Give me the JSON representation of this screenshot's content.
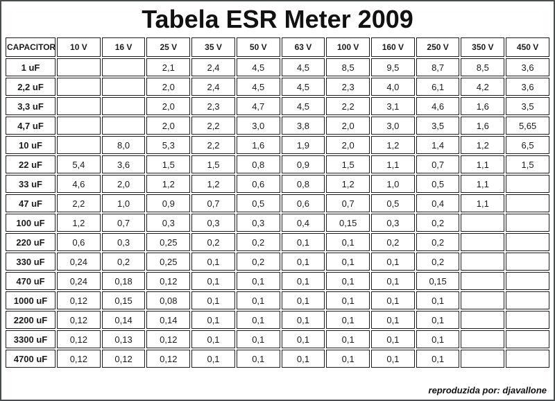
{
  "title": "Tabela ESR Meter 2009",
  "footer": {
    "credit": "reproduzida por: djavallone"
  },
  "colors": {
    "teal": "#57C5C9",
    "yellow": "#F8F4A5",
    "empty_gray": "#C2C2C2",
    "header_gray": "#DEDEDE",
    "cell_border": "#1B1B1B",
    "empty_cell_border": "#97999B",
    "page_border": "#4A4D4F"
  },
  "chart_data": {
    "type": "table",
    "title": "Tabela ESR Meter 2009",
    "corner_header": "CAPACITOR",
    "columns": [
      "10 V",
      "16 V",
      "25 V",
      "35 V",
      "50 V",
      "63 V",
      "100 V",
      "160 V",
      "250 V",
      "350 V",
      "450 V"
    ],
    "rows": [
      {
        "label": "1 uF",
        "values": [
          "",
          "",
          "2,1",
          "2,4",
          "4,5",
          "4,5",
          "8,5",
          "9,5",
          "8,7",
          "8,5",
          "3,6"
        ]
      },
      {
        "label": "2,2 uF",
        "values": [
          "",
          "",
          "2,0",
          "2,4",
          "4,5",
          "4,5",
          "2,3",
          "4,0",
          "6,1",
          "4,2",
          "3,6"
        ]
      },
      {
        "label": "3,3 uF",
        "values": [
          "",
          "",
          "2,0",
          "2,3",
          "4,7",
          "4,5",
          "2,2",
          "3,1",
          "4,6",
          "1,6",
          "3,5"
        ]
      },
      {
        "label": "4,7 uF",
        "values": [
          "",
          "",
          "2,0",
          "2,2",
          "3,0",
          "3,8",
          "2,0",
          "3,0",
          "3,5",
          "1,6",
          "5,65"
        ]
      },
      {
        "label": "10 uF",
        "values": [
          "",
          "8,0",
          "5,3",
          "2,2",
          "1,6",
          "1,9",
          "2,0",
          "1,2",
          "1,4",
          "1,2",
          "6,5"
        ]
      },
      {
        "label": "22 uF",
        "values": [
          "5,4",
          "3,6",
          "1,5",
          "1,5",
          "0,8",
          "0,9",
          "1,5",
          "1,1",
          "0,7",
          "1,1",
          "1,5"
        ]
      },
      {
        "label": "33 uF",
        "values": [
          "4,6",
          "2,0",
          "1,2",
          "1,2",
          "0,6",
          "0,8",
          "1,2",
          "1,0",
          "0,5",
          "1,1",
          ""
        ]
      },
      {
        "label": "47 uF",
        "values": [
          "2,2",
          "1,0",
          "0,9",
          "0,7",
          "0,5",
          "0,6",
          "0,7",
          "0,5",
          "0,4",
          "1,1",
          ""
        ]
      },
      {
        "label": "100 uF",
        "values": [
          "1,2",
          "0,7",
          "0,3",
          "0,3",
          "0,3",
          "0,4",
          "0,15",
          "0,3",
          "0,2",
          "",
          ""
        ]
      },
      {
        "label": "220 uF",
        "values": [
          "0,6",
          "0,3",
          "0,25",
          "0,2",
          "0,2",
          "0,1",
          "0,1",
          "0,2",
          "0,2",
          "",
          ""
        ]
      },
      {
        "label": "330 uF",
        "values": [
          "0,24",
          "0,2",
          "0,25",
          "0,1",
          "0,2",
          "0,1",
          "0,1",
          "0,1",
          "0,2",
          "",
          ""
        ]
      },
      {
        "label": "470 uF",
        "values": [
          "0,24",
          "0,18",
          "0,12",
          "0,1",
          "0,1",
          "0,1",
          "0,1",
          "0,1",
          "0,15",
          "",
          ""
        ]
      },
      {
        "label": "1000 uF",
        "values": [
          "0,12",
          "0,15",
          "0,08",
          "0,1",
          "0,1",
          "0,1",
          "0,1",
          "0,1",
          "0,1",
          "",
          ""
        ]
      },
      {
        "label": "2200 uF",
        "values": [
          "0,12",
          "0,14",
          "0,14",
          "0,1",
          "0,1",
          "0,1",
          "0,1",
          "0,1",
          "0,1",
          "",
          ""
        ]
      },
      {
        "label": "3300 uF",
        "values": [
          "0,12",
          "0,13",
          "0,12",
          "0,1",
          "0,1",
          "0,1",
          "0,1",
          "0,1",
          "0,1",
          "",
          ""
        ]
      },
      {
        "label": "4700 uF",
        "values": [
          "0,12",
          "0,12",
          "0,12",
          "0,1",
          "0,1",
          "0,1",
          "0,1",
          "0,1",
          "0,1",
          "",
          ""
        ]
      }
    ]
  }
}
